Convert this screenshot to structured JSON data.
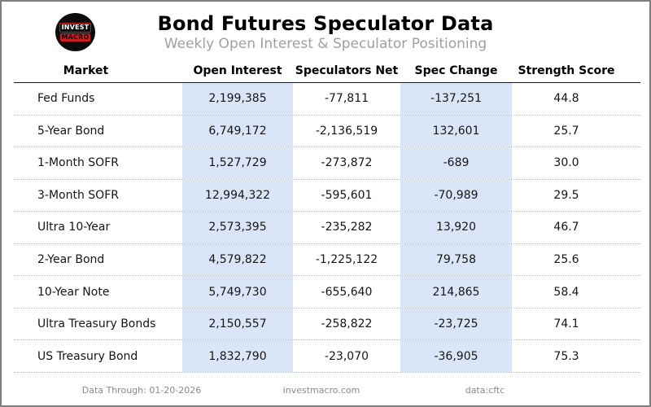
{
  "header": {
    "title": "Bond Futures Speculator Data",
    "subtitle": "Weekly Open Interest & Speculator Positioning",
    "logo": {
      "line1": "INVEST",
      "line2": "MACRO"
    }
  },
  "table": {
    "columns": [
      "Market",
      "Open Interest",
      "Speculators Net",
      "Spec Change",
      "Strength Score"
    ],
    "rows": [
      {
        "market": "Fed Funds",
        "open_interest": "2,199,385",
        "spec_net": "-77,811",
        "spec_change": "-137,251",
        "strength": "44.8"
      },
      {
        "market": "5-Year Bond",
        "open_interest": "6,749,172",
        "spec_net": "-2,136,519",
        "spec_change": "132,601",
        "strength": "25.7"
      },
      {
        "market": "1-Month SOFR",
        "open_interest": "1,527,729",
        "spec_net": "-273,872",
        "spec_change": "-689",
        "strength": "30.0"
      },
      {
        "market": "3-Month SOFR",
        "open_interest": "12,994,322",
        "spec_net": "-595,601",
        "spec_change": "-70,989",
        "strength": "29.5"
      },
      {
        "market": "Ultra 10-Year",
        "open_interest": "2,573,395",
        "spec_net": "-235,282",
        "spec_change": "13,920",
        "strength": "46.7"
      },
      {
        "market": "2-Year Bond",
        "open_interest": "4,579,822",
        "spec_net": "-1,225,122",
        "spec_change": "79,758",
        "strength": "25.6"
      },
      {
        "market": "10-Year Note",
        "open_interest": "5,749,730",
        "spec_net": "-655,640",
        "spec_change": "214,865",
        "strength": "58.4"
      },
      {
        "market": "Ultra Treasury Bonds",
        "open_interest": "2,150,557",
        "spec_net": "-258,822",
        "spec_change": "-23,725",
        "strength": "74.1"
      },
      {
        "market": "US Treasury Bond",
        "open_interest": "1,832,790",
        "spec_net": "-23,070",
        "spec_change": "-36,905",
        "strength": "75.3"
      }
    ]
  },
  "footer": {
    "data_through": "Data Through: 01-20-2026",
    "site": "investmacro.com",
    "source": "data:cftc"
  },
  "colors": {
    "highlight_column": "#dbe5f8",
    "accent_red": "#cf1b24",
    "subtitle_gray": "#a0a0a0",
    "footer_gray": "#8a8a8a"
  },
  "chart_data": {
    "type": "table",
    "title": "Bond Futures Speculator Data",
    "subtitle": "Weekly Open Interest & Speculator Positioning",
    "columns": [
      "Market",
      "Open Interest",
      "Speculators Net",
      "Spec Change",
      "Strength Score"
    ],
    "rows": [
      [
        "Fed Funds",
        2199385,
        -77811,
        -137251,
        44.8
      ],
      [
        "5-Year Bond",
        6749172,
        -2136519,
        132601,
        25.7
      ],
      [
        "1-Month SOFR",
        1527729,
        -273872,
        -689,
        30.0
      ],
      [
        "3-Month SOFR",
        12994322,
        -595601,
        -70989,
        29.5
      ],
      [
        "Ultra 10-Year",
        2573395,
        -235282,
        13920,
        46.7
      ],
      [
        "2-Year Bond",
        4579822,
        -1225122,
        79758,
        25.6
      ],
      [
        "10-Year Note",
        5749730,
        -655640,
        214865,
        58.4
      ],
      [
        "Ultra Treasury Bonds",
        2150557,
        -258822,
        -23725,
        74.1
      ],
      [
        "US Treasury Bond",
        1832790,
        -23070,
        -36905,
        75.3
      ]
    ],
    "highlighted_columns": [
      "Open Interest",
      "Spec Change"
    ],
    "footer": [
      "Data Through: 01-20-2026",
      "investmacro.com",
      "data:cftc"
    ]
  }
}
